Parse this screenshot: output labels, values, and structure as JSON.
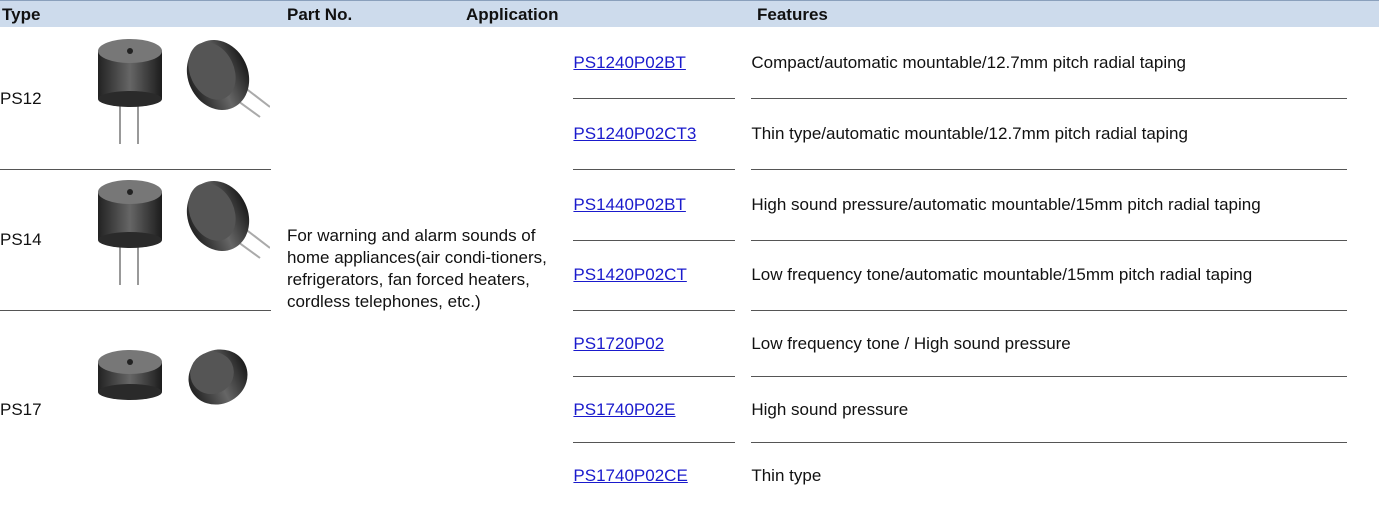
{
  "header": {
    "columns": [
      "Type",
      "Part No.",
      "Application",
      "Features"
    ]
  },
  "application": "For warning and alarm sounds of home appliances(air condi-tioners, refrigerators, fan forced heaters, cordless telephones, etc.)",
  "groups": [
    {
      "type": "PS12",
      "parts": [
        {
          "part_no": "PS1240P02BT",
          "features": "Compact/automatic mountable/12.7mm pitch radial taping"
        },
        {
          "part_no": "PS1240P02CT3",
          "features": "Thin type/automatic mountable/12.7mm pitch radial taping"
        }
      ]
    },
    {
      "type": "PS14",
      "parts": [
        {
          "part_no": "PS1440P02BT",
          "features": "High sound pressure/automatic mountable/15mm pitch radial taping"
        },
        {
          "part_no": "PS1420P02CT",
          "features": "Low frequency tone/automatic mountable/15mm pitch radial taping"
        }
      ]
    },
    {
      "type": "PS17",
      "parts": [
        {
          "part_no": "PS1720P02",
          "features": "Low frequency tone / High sound pressure"
        },
        {
          "part_no": "PS1740P02E",
          "features": "High sound pressure"
        },
        {
          "part_no": "PS1740P02CE",
          "features": "Thin type"
        }
      ]
    }
  ]
}
